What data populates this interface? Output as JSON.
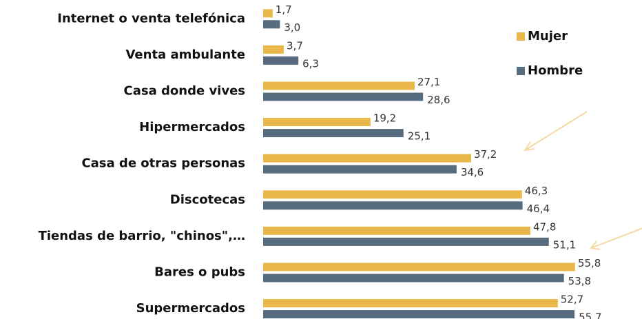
{
  "chart_data": {
    "type": "hbar",
    "categories": [
      "Internet o venta telefónica",
      "Venta ambulante",
      "Casa donde vives",
      "Hipermercados",
      "Casa de otras personas",
      "Discotecas",
      "Tiendas de barrio, \"chinos\",…",
      "Bares o pubs",
      "Supermercados"
    ],
    "series": [
      {
        "name": "Mujer",
        "color": "#e9b84a",
        "values": [
          1.7,
          3.7,
          27.1,
          19.2,
          37.2,
          46.3,
          47.8,
          55.8,
          52.7
        ],
        "value_labels": [
          "1,7",
          "3,7",
          "27,1",
          "19,2",
          "37,2",
          "46,3",
          "47,8",
          "55,8",
          "52,7"
        ]
      },
      {
        "name": "Hombre",
        "color": "#566b7e",
        "values": [
          3.0,
          6.3,
          28.6,
          25.1,
          34.6,
          46.4,
          51.1,
          53.8,
          55.7
        ],
        "value_labels": [
          "3,0",
          "6,3",
          "28,6",
          "25,1",
          "34,6",
          "46,4",
          "51,1",
          "53,8",
          "55,7"
        ]
      }
    ],
    "xlim": [
      0,
      60
    ],
    "legend": "top-right"
  }
}
